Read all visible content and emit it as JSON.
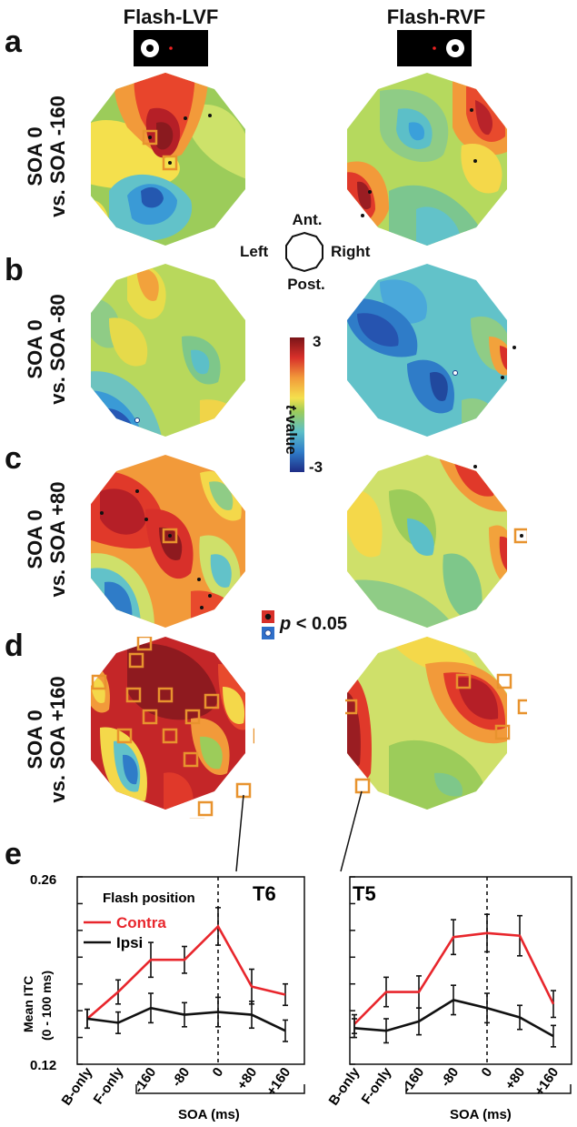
{
  "panels": {
    "a": "a",
    "b": "b",
    "c": "c",
    "d": "d",
    "e": "e"
  },
  "columns": {
    "left": "Flash-LVF",
    "right": "Flash-RVF"
  },
  "rows": [
    {
      "line1": "SOA 0",
      "line2": "vs. SOA -160"
    },
    {
      "line1": "SOA 0",
      "line2": "vs. SOA -80"
    },
    {
      "line1": "SOA 0",
      "line2": "vs. SOA +80"
    },
    {
      "line1": "SOA 0",
      "line2": "vs. SOA +160"
    }
  ],
  "orientation": {
    "anterior": "Ant.",
    "posterior": "Post.",
    "left": "Left",
    "right": "Right"
  },
  "colorbar": {
    "max": "3",
    "min": "-3",
    "label_t": "t",
    "label_rest": "-value"
  },
  "significance": {
    "p_label": "p",
    "p_rest": " < 0.05"
  },
  "colors": {
    "contra": "#e8262c",
    "ipsi": "#111111",
    "highlight": "#e8932e"
  },
  "chart_data": [
    {
      "type": "line",
      "title": "T6",
      "categories": [
        "B-only",
        "F-only",
        "-160",
        "-80",
        "0",
        "+80",
        "+160"
      ],
      "series": [
        {
          "name": "Contra",
          "values": [
            0.154,
            0.174,
            0.198,
            0.198,
            0.223,
            0.178,
            0.172
          ],
          "errors": [
            0.007,
            0.009,
            0.013,
            0.01,
            0.014,
            0.013,
            0.008
          ]
        },
        {
          "name": "Ipsi",
          "values": [
            0.154,
            0.151,
            0.162,
            0.157,
            0.159,
            0.157,
            0.145
          ],
          "errors": [
            0.007,
            0.008,
            0.011,
            0.009,
            0.011,
            0.01,
            0.008
          ]
        }
      ],
      "ylabel_line1": "Mean ITC",
      "ylabel_line2": "(0 - 100 ms)",
      "xlabel": "SOA (ms)",
      "ylim": [
        0.12,
        0.26
      ],
      "yticks_shown": [
        "0.26",
        "0.12"
      ],
      "legend": {
        "title": "Flash position",
        "entries": [
          "Contra",
          "Ipsi"
        ]
      }
    },
    {
      "type": "line",
      "title": "T5",
      "categories": [
        "B-only",
        "F-only",
        "-160",
        "-80",
        "0",
        "+80",
        "+160"
      ],
      "series": [
        {
          "name": "Contra",
          "values": [
            0.15,
            0.174,
            0.174,
            0.215,
            0.218,
            0.216,
            0.165
          ],
          "errors": [
            0.007,
            0.011,
            0.012,
            0.013,
            0.014,
            0.015,
            0.01
          ]
        },
        {
          "name": "Ipsi",
          "values": [
            0.147,
            0.145,
            0.152,
            0.168,
            0.162,
            0.155,
            0.141
          ],
          "errors": [
            0.007,
            0.009,
            0.01,
            0.011,
            0.011,
            0.009,
            0.008
          ]
        }
      ],
      "xlabel": "SOA (ms)",
      "ylim": [
        0.12,
        0.26
      ]
    }
  ]
}
